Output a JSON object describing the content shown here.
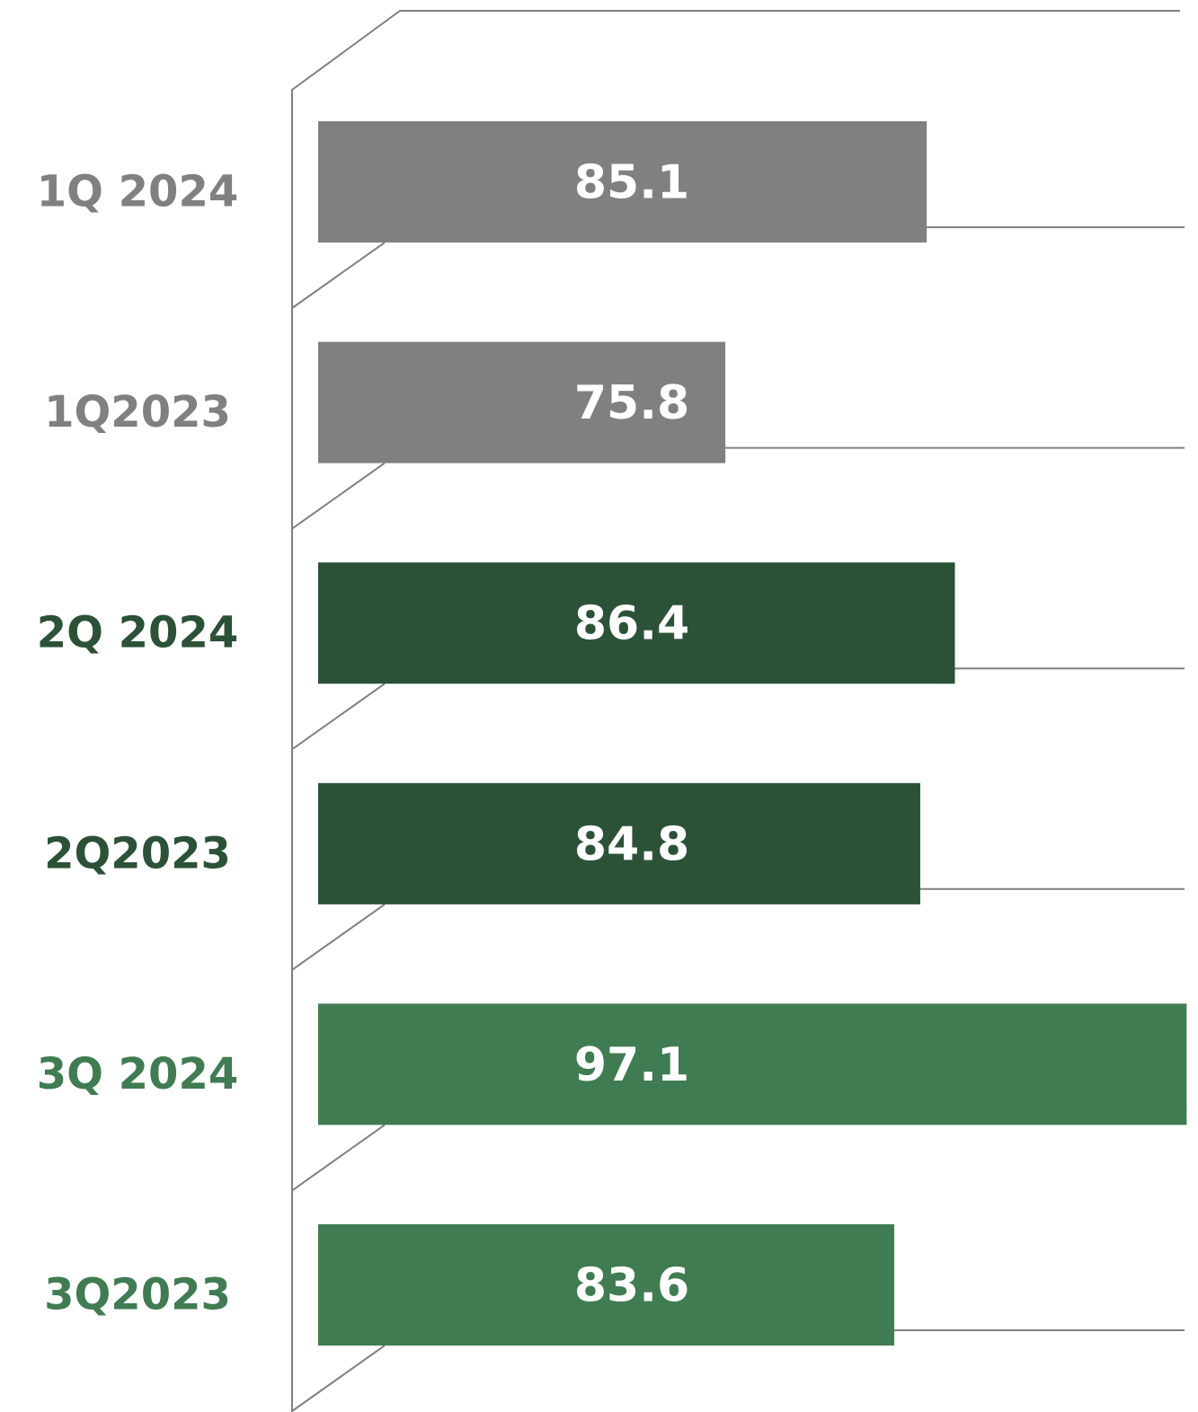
{
  "chart_data": {
    "type": "barh",
    "categories": [
      "1Q 2024",
      "1Q2023",
      "2Q 2024",
      "2Q2023",
      "3Q 2024",
      "3Q2023"
    ],
    "values": [
      85.1,
      75.8,
      86.4,
      84.8,
      97.1,
      83.6
    ],
    "colors": [
      "#808080",
      "#808080",
      "#2b5237",
      "#2b5237",
      "#407c52",
      "#407c52"
    ],
    "xlim": [
      57,
      97.5
    ]
  }
}
